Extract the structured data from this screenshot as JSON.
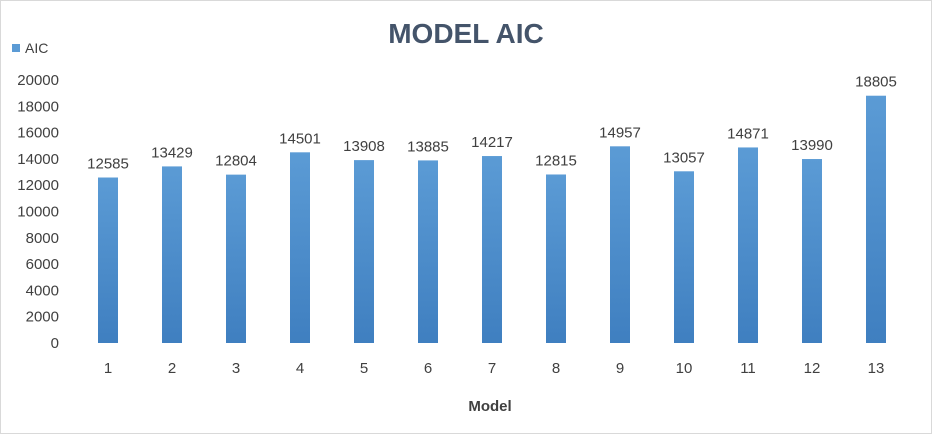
{
  "chart_data": {
    "type": "bar",
    "title": "MODEL AIC",
    "xlabel": "Model",
    "ylabel": "",
    "categories": [
      "1",
      "2",
      "3",
      "4",
      "5",
      "6",
      "7",
      "8",
      "9",
      "10",
      "11",
      "12",
      "13"
    ],
    "series": [
      {
        "name": "AIC",
        "values": [
          12585,
          13429,
          12804,
          14501,
          13908,
          13885,
          14217,
          12815,
          14957,
          13057,
          14871,
          13990,
          18805
        ]
      }
    ],
    "ylim": [
      0,
      20000
    ],
    "yticks": [
      0,
      2000,
      4000,
      6000,
      8000,
      10000,
      12000,
      14000,
      16000,
      18000,
      20000
    ],
    "grid": false,
    "legend": "top-left",
    "bar_color": "#5b9bd5",
    "bar_color_dark": "#3f7fc0"
  }
}
